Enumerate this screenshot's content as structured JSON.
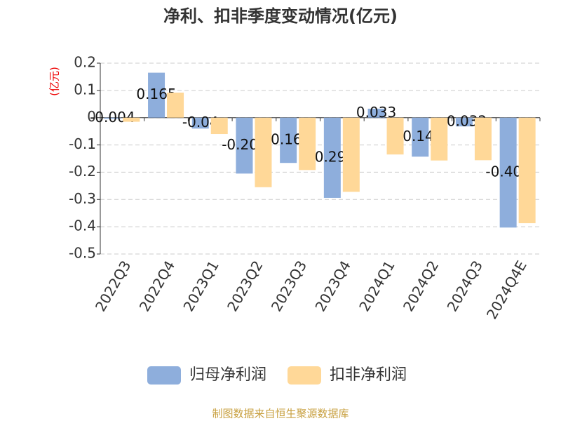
{
  "chart_data": {
    "type": "bar",
    "title": "净利、扣非季度变动情况(亿元)",
    "y_label": "(亿元)",
    "categories": [
      "2022Q3",
      "2022Q4",
      "2023Q1",
      "2023Q2",
      "2023Q3",
      "2023Q4",
      "2024Q1",
      "2024Q2",
      "2024Q3",
      "2024Q4E"
    ],
    "series": [
      {
        "name": "归母净利润",
        "color": "#8eaedc",
        "values": [
          -0.004,
          0.165,
          -0.04,
          -0.205,
          -0.166,
          -0.294,
          0.033,
          -0.143,
          -0.032,
          -0.403
        ]
      },
      {
        "name": "扣非净利润",
        "color": "#ffd898",
        "values": [
          -0.015,
          0.092,
          -0.06,
          -0.255,
          -0.192,
          -0.272,
          -0.135,
          -0.157,
          -0.156,
          -0.387
        ]
      }
    ],
    "ylim": [
      -0.5,
      0.2
    ],
    "yticks": [
      0.2,
      0.1,
      0,
      -0.1,
      -0.2,
      -0.3,
      -0.4,
      -0.5
    ],
    "grid": true,
    "source": "制图数据来自恒生聚源数据库"
  }
}
